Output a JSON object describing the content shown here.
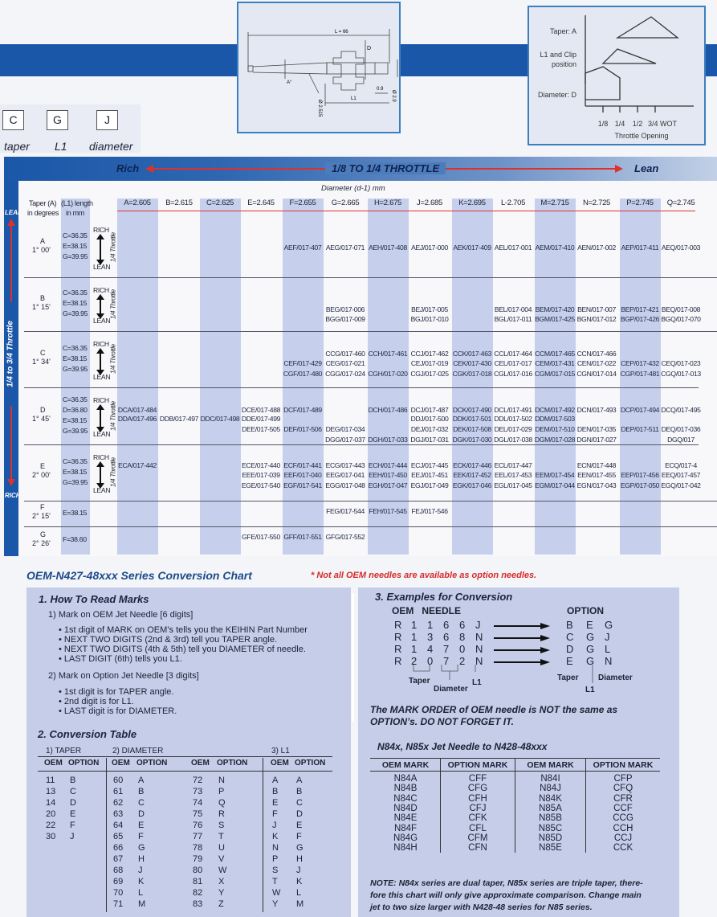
{
  "marks": {
    "boxes": [
      "C",
      "G",
      "J"
    ],
    "labels": [
      "taper",
      "L1",
      "diameter"
    ]
  },
  "needle_diagram": {
    "L": "L = 66",
    "D": "D",
    "A": "A°",
    "d1": "Ø 2.515",
    "d2": "Ø 2.9",
    "dim09": "0.9",
    "L1": "L1"
  },
  "throttle_diagram": {
    "taper": "Taper: A",
    "l1_line1": "L1 and Clip",
    "l1_line2": "position",
    "diameter": "Diameter: D",
    "ticks": [
      "1/8",
      "1/4",
      "1/2",
      "3/4 WOT"
    ],
    "xlabel": "Throttle Opening"
  },
  "band": {
    "rich": "Rich",
    "title": "1/8 TO 1/4 THROTTLE",
    "lean": "Lean"
  },
  "side": {
    "lean": "LEAN",
    "title": "1/4 to 3/4 Throttle",
    "rich": "RICH"
  },
  "table": {
    "diameter_title": "Diameter (d-1) mm",
    "taper_header": [
      "Taper (A)",
      "in degrees"
    ],
    "l1_header": [
      "(L1) length",
      "in mm"
    ],
    "rich_label": "RICH",
    "lean_label": "LEAN",
    "throttle_label": "1/4 Throttle",
    "columns": [
      "A=2.605",
      "B=2.615",
      "C=2.625",
      "E=2.645",
      "F=2.655",
      "G=2.665",
      "H=2.675",
      "J=2.685",
      "K=2.695",
      "L-2.705",
      "M=2.715",
      "N=2.725",
      "P=2.745",
      "Q=2.745"
    ],
    "rows": [
      {
        "taper": "A",
        "degrees": "1° 00'",
        "l1": [
          "C=36.35",
          "E=38.15",
          "G=39.95"
        ],
        "arrow": true,
        "cells": [
          [
            ""
          ],
          [
            ""
          ],
          [
            ""
          ],
          [
            ""
          ],
          [
            "AEF/017-407"
          ],
          [
            "AEG/017-071"
          ],
          [
            "AEH/017-408"
          ],
          [
            "AEJ/017-000"
          ],
          [
            "AEK/017-409"
          ],
          [
            "AEL/017-001"
          ],
          [
            "AEM/017-410"
          ],
          [
            "AEN/017-002"
          ],
          [
            "AEP/017-411"
          ],
          [
            "AEQ/017-003"
          ]
        ]
      },
      {
        "taper": "B",
        "degrees": "1° 15'",
        "l1": [
          "C=36.35",
          "E=38.15",
          "G=39.95"
        ],
        "arrow": true,
        "cells": [
          [
            "",
            ""
          ],
          [
            "",
            ""
          ],
          [
            "",
            ""
          ],
          [
            "",
            ""
          ],
          [
            "",
            ""
          ],
          [
            "BEG/017-006",
            "BGG/017-009"
          ],
          [
            "",
            ""
          ],
          [
            "BEJ/017-005",
            "BGJ/017-010"
          ],
          [
            "",
            ""
          ],
          [
            "BEL/017-004",
            "BGL/017-011"
          ],
          [
            "BEM/017-420",
            "BGM/017-425"
          ],
          [
            "BEN/017-007",
            "BGN/017-012"
          ],
          [
            "BEP/017-421",
            "BGP/017-426"
          ],
          [
            "BEQ/017-008",
            "BGQ/017-070"
          ]
        ]
      },
      {
        "taper": "C",
        "degrees": "1° 34'",
        "l1": [
          "C=36.35",
          "E=38.15",
          "G=39.95"
        ],
        "arrow": true,
        "cells": [
          [
            "",
            "",
            ""
          ],
          [
            "",
            "",
            ""
          ],
          [
            "",
            "",
            ""
          ],
          [
            "",
            "",
            ""
          ],
          [
            "",
            "CEF/017-429",
            "CGF/017-480"
          ],
          [
            "CCG/017-460",
            "CEG/017-021",
            "CGG/017-024"
          ],
          [
            "CCH/017-461",
            "",
            "CGH/017-020"
          ],
          [
            "CCJ/017-462",
            "CEJ/017-019",
            "CGJ/017-025"
          ],
          [
            "CCK/017-463",
            "CEK/017-430",
            "CGK/017-018"
          ],
          [
            "CCL/017-464",
            "CEL/017-017",
            "CGL/017-016"
          ],
          [
            "CCM/017-465",
            "CEM/017-431",
            "CGM/017-015"
          ],
          [
            "CCN/017-466",
            "CEN/017-022",
            "CGN/017-014"
          ],
          [
            "",
            "CEP/017-432",
            "CGP/017-481"
          ],
          [
            "",
            "CEQ/017-023",
            "CGQ/017-013"
          ]
        ]
      },
      {
        "taper": "D",
        "degrees": "1° 45'",
        "l1": [
          "C=36.35",
          "D=36.80",
          "E=38.15",
          "G=39.95"
        ],
        "arrow": true,
        "cells": [
          [
            "DCA/017-484",
            "DDA/017-496",
            "",
            ""
          ],
          [
            "",
            "DDB/017-497",
            "",
            ""
          ],
          [
            "",
            "DDC/017-498",
            "",
            ""
          ],
          [
            "DCE/017-488",
            "DDE/017-499",
            "DEE/017-505",
            ""
          ],
          [
            "DCF/017-489",
            "",
            "DEF/017-506",
            ""
          ],
          [
            "",
            "",
            "DEG/017-034",
            "DGG/017-037"
          ],
          [
            "DCH/017-486",
            "",
            "",
            "DGH/017-033"
          ],
          [
            "DCJ/017-487",
            "DDJ/017-500",
            "DEJ/017-032",
            "DGJ/017-031"
          ],
          [
            "DCK/017-490",
            "DDK/017-501",
            "DEK/017-508",
            "DGK/017-030"
          ],
          [
            "DCL/017-491",
            "DDL/017-502",
            "DEL/017-029",
            "DGL/017-038"
          ],
          [
            "DCM/017-492",
            "DDM/017-503",
            "DEM/017-510",
            "DGM/017-028"
          ],
          [
            "DCN/017-493",
            "",
            "DEN/017-035",
            "DGN/017-027"
          ],
          [
            "DCP/017-494",
            "",
            "DEP/017-511",
            ""
          ],
          [
            "DCQ/017-495",
            "",
            "DEQ/017-036",
            "DGQ/017"
          ]
        ]
      },
      {
        "taper": "E",
        "degrees": "2° 00'",
        "l1": [
          "C=36.35",
          "E=38.15",
          "G=39.95"
        ],
        "arrow": true,
        "cells": [
          [
            "ECA/017-442",
            "",
            ""
          ],
          [
            "",
            "",
            ""
          ],
          [
            "",
            "",
            ""
          ],
          [
            "ECE/017-440",
            "EEE/017-039",
            "EGE/017-540"
          ],
          [
            "ECF/017-441",
            "EEF/017-040",
            "EGF/017-541"
          ],
          [
            "ECG/017-443",
            "EEG/017-041",
            "EGG/017-048"
          ],
          [
            "ECH/017-444",
            "EEH/017-450",
            "EGH/017-047"
          ],
          [
            "ECJ/017-445",
            "EEJ/017-451",
            "EGJ/017-049"
          ],
          [
            "ECK/017-446",
            "EEK/017-452",
            "EGK/017-046"
          ],
          [
            "ECL/017-447",
            "EEL/017-453",
            "EGL/017-045"
          ],
          [
            "",
            "EEM/017-454",
            "EGM/017-044"
          ],
          [
            "ECN/017-448",
            "EEN/017-455",
            "EGN/017-043"
          ],
          [
            "",
            "EEP/017-456",
            "EGP/017-050"
          ],
          [
            "ECQ/017-4",
            "EEQ/017-457",
            "EGQ/017-042"
          ]
        ]
      },
      {
        "taper": "F",
        "degrees": "2° 15'",
        "l1": [
          "E=38.15"
        ],
        "arrow": false,
        "cells": [
          [
            ""
          ],
          [
            ""
          ],
          [
            ""
          ],
          [
            ""
          ],
          [
            ""
          ],
          [
            "FEG/017-544"
          ],
          [
            "FEH/017-545"
          ],
          [
            "FEJ/017-546"
          ],
          [
            ""
          ],
          [
            ""
          ],
          [
            ""
          ],
          [
            ""
          ],
          [
            ""
          ],
          [
            ""
          ]
        ]
      },
      {
        "taper": "G",
        "degrees": "2° 26'",
        "l1": [
          "F=38.60"
        ],
        "arrow": false,
        "cells": [
          [
            ""
          ],
          [
            ""
          ],
          [
            ""
          ],
          [
            "GFE/017-550"
          ],
          [
            "GFF/017-551"
          ],
          [
            "GFG/017-552"
          ],
          [
            ""
          ],
          [
            ""
          ],
          [
            ""
          ],
          [
            ""
          ],
          [
            ""
          ],
          [
            ""
          ],
          [
            ""
          ],
          [
            ""
          ]
        ]
      }
    ]
  },
  "conversion": {
    "title": "OEM-N427-48xxx Series Conversion Chart",
    "note": "* Not all OEM needles are available as option needles.",
    "how_to": {
      "heading": "1. How To Read Marks",
      "oem_heading": "1) Mark on OEM Jet Needle [6 digits]",
      "oem_bullets": [
        "• 1st digit of MARK on OEM’s tells you the KEIHIN Part Number",
        "• NEXT TWO DIGITS (2nd & 3rd) tell you TAPER angle.",
        "• NEXT TWO DIGITS (4th & 5th) tell you DIAMETER of needle.",
        "• LAST DIGIT (6th) tells you L1."
      ],
      "option_heading": "2) Mark on Option Jet Needle [3 digits]",
      "option_bullets": [
        "• 1st digit is for TAPER angle.",
        "• 2nd digit is for L1.",
        "• LAST digit is for DIAMETER."
      ]
    },
    "table": {
      "heading": "2. Conversion Table",
      "taper_title": "1) TAPER",
      "diameter_title": "2) DIAMETER",
      "l1_title": "3) L1",
      "oem": "OEM",
      "option": "OPTION",
      "taper": [
        [
          "11",
          "B"
        ],
        [
          "13",
          "C"
        ],
        [
          "14",
          "D"
        ],
        [
          "20",
          "E"
        ],
        [
          "22",
          "F"
        ],
        [
          "30",
          "J"
        ]
      ],
      "diameter1": [
        [
          "60",
          "A"
        ],
        [
          "61",
          "B"
        ],
        [
          "62",
          "C"
        ],
        [
          "63",
          "D"
        ],
        [
          "64",
          "E"
        ],
        [
          "65",
          "F"
        ],
        [
          "66",
          "G"
        ],
        [
          "67",
          "H"
        ],
        [
          "68",
          "J"
        ],
        [
          "69",
          "K"
        ],
        [
          "70",
          "L"
        ],
        [
          "71",
          "M"
        ]
      ],
      "diameter2": [
        [
          "72",
          "N"
        ],
        [
          "73",
          "P"
        ],
        [
          "74",
          "Q"
        ],
        [
          "75",
          "R"
        ],
        [
          "76",
          "S"
        ],
        [
          "77",
          "T"
        ],
        [
          "78",
          "U"
        ],
        [
          "79",
          "V"
        ],
        [
          "80",
          "W"
        ],
        [
          "81",
          "X"
        ],
        [
          "82",
          "Y"
        ],
        [
          "83",
          "Z"
        ]
      ],
      "l1": [
        [
          "A",
          "A"
        ],
        [
          "B",
          "B"
        ],
        [
          "E",
          "C"
        ],
        [
          "F",
          "D"
        ],
        [
          "J",
          "E"
        ],
        [
          "K",
          "F"
        ],
        [
          "N",
          "G"
        ],
        [
          "P",
          "H"
        ],
        [
          "S",
          "J"
        ],
        [
          "T",
          "K"
        ],
        [
          "W",
          "L"
        ],
        [
          "Y",
          "M"
        ]
      ]
    },
    "examples": {
      "heading": "3. Examples for Conversion",
      "oem_header": "OEM   NEEDLE",
      "option_header": "OPTION",
      "oem": [
        [
          "R",
          "1",
          "1",
          "6",
          "6",
          "J"
        ],
        [
          "R",
          "1",
          "3",
          "6",
          "8",
          "N"
        ],
        [
          "R",
          "1",
          "4",
          "7",
          "0",
          "N"
        ],
        [
          "R",
          "2",
          "0",
          "7",
          "2",
          "N"
        ]
      ],
      "option": [
        [
          "B",
          "E",
          "G"
        ],
        [
          "C",
          "G",
          "J"
        ],
        [
          "D",
          "G",
          "L"
        ],
        [
          "E",
          "G",
          "N"
        ]
      ],
      "oem_labels": {
        "taper": "Taper",
        "diameter": "Diameter",
        "l1": "L1"
      },
      "option_labels": {
        "taper": "Taper",
        "diameter": "Diameter",
        "l1": "L1"
      },
      "warning": [
        "The MARK ORDER of OEM needle is NOT the same as",
        "OPTION’s.  DO NOT FORGET IT."
      ]
    },
    "n84": {
      "heading": "N84x, N85x Jet  Needle to N428-48xxx",
      "headers": [
        "OEM MARK",
        "OPTION MARK",
        "OEM MARK",
        "OPTION MARK"
      ],
      "rows": [
        [
          "N84A",
          "CFF",
          "N84I",
          "CFP"
        ],
        [
          "N84B",
          "CFG",
          "N84J",
          "CFQ"
        ],
        [
          "N84C",
          "CFH",
          "N84K",
          "CFR"
        ],
        [
          "N84D",
          "CFJ",
          "N85A",
          "CCF"
        ],
        [
          "N84E",
          "CFK",
          "N85B",
          "CCG"
        ],
        [
          "N84F",
          "CFL",
          "N85C",
          "CCH"
        ],
        [
          "N84G",
          "CFM",
          "N85D",
          "CCJ"
        ],
        [
          "N84H",
          "CFN",
          "N85E",
          "CCK"
        ]
      ],
      "note": [
        "NOTE: N84x series are dual taper, N85x series are triple taper, there-",
        "fore this chart will only give approximate comparison. Change main",
        "jet to two size larger with N428-48 series for N85 series."
      ]
    }
  },
  "colors": {
    "brand_blue": "#1b57a8",
    "arrow_red": "#e0302a",
    "panel": "#c5cde9",
    "column_shade": "#c6d0ec"
  }
}
